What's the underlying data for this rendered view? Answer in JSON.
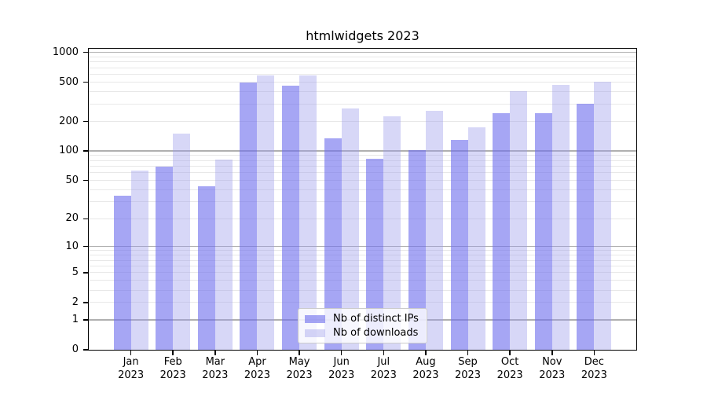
{
  "chart_data": {
    "type": "bar",
    "title": "htmlwidgets 2023",
    "categories": [
      "Jan",
      "Feb",
      "Mar",
      "Apr",
      "May",
      "Jun",
      "Jul",
      "Aug",
      "Sep",
      "Oct",
      "Nov",
      "Dec"
    ],
    "category_year": "2023",
    "series": [
      {
        "name": "Nb of distinct IPs",
        "color": "rgba(112,112,237,0.62)",
        "values": [
          35,
          70,
          44,
          496,
          458,
          135,
          83,
          103,
          131,
          242,
          242,
          304
        ]
      },
      {
        "name": "Nb of downloads",
        "color": "rgba(155,155,235,0.40)",
        "values": [
          63,
          151,
          82,
          585,
          585,
          273,
          227,
          257,
          176,
          403,
          472,
          503
        ]
      }
    ],
    "xlabel": "",
    "ylabel": "",
    "yscale": "log1p",
    "ylim": [
      0,
      1088
    ],
    "yticks": [
      0,
      1,
      2,
      5,
      10,
      20,
      50,
      100,
      200,
      500,
      1000
    ],
    "grid": {
      "major": [
        1,
        10,
        100,
        1000
      ],
      "minor": [
        2,
        3,
        4,
        5,
        6,
        7,
        8,
        9,
        20,
        30,
        40,
        50,
        60,
        70,
        80,
        90,
        200,
        300,
        400,
        500,
        600,
        700,
        800,
        900
      ],
      "major_color": "#b0b0b0",
      "minor_color": "#e8e8e8"
    },
    "legend_position": "lower center",
    "bar_colors": {
      "distinct_ips": "rgba(112,112,237,0.62)",
      "downloads": "rgba(155,155,235,0.40)"
    }
  }
}
